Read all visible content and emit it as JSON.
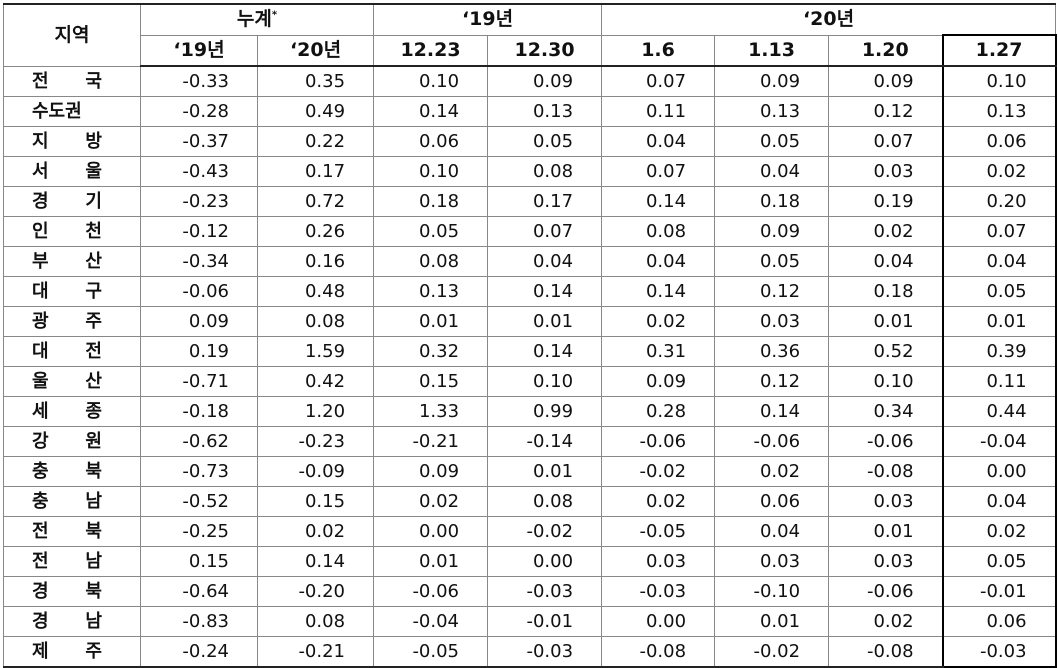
{
  "header": {
    "region": "지역",
    "cumulative": "누계",
    "cumulative_note": "*",
    "year19": "‘19년",
    "year20": "‘20년",
    "columns": [
      "‘19년",
      "‘20년",
      "12.23",
      "12.30",
      "1.6",
      "1.13",
      "1.20",
      "1.27"
    ]
  },
  "table": {
    "rows": [
      [
        "전 국",
        "-0.33",
        "0.35",
        "0.10",
        "0.09",
        "0.07",
        "0.09",
        "0.09",
        "0.10"
      ],
      [
        "수도권",
        "-0.28",
        "0.49",
        "0.14",
        "0.13",
        "0.11",
        "0.13",
        "0.12",
        "0.13"
      ],
      [
        "지 방",
        "-0.37",
        "0.22",
        "0.06",
        "0.05",
        "0.04",
        "0.05",
        "0.07",
        "0.06"
      ],
      [
        "서 울",
        "-0.43",
        "0.17",
        "0.10",
        "0.08",
        "0.07",
        "0.04",
        "0.03",
        "0.02"
      ],
      [
        "경 기",
        "-0.23",
        "0.72",
        "0.18",
        "0.17",
        "0.14",
        "0.18",
        "0.19",
        "0.20"
      ],
      [
        "인 천",
        "-0.12",
        "0.26",
        "0.05",
        "0.07",
        "0.08",
        "0.09",
        "0.02",
        "0.07"
      ],
      [
        "부 산",
        "-0.34",
        "0.16",
        "0.08",
        "0.04",
        "0.04",
        "0.05",
        "0.04",
        "0.04"
      ],
      [
        "대 구",
        "-0.06",
        "0.48",
        "0.13",
        "0.14",
        "0.14",
        "0.12",
        "0.18",
        "0.05"
      ],
      [
        "광 주",
        "0.09",
        "0.08",
        "0.01",
        "0.01",
        "0.02",
        "0.03",
        "0.01",
        "0.01"
      ],
      [
        "대 전",
        "0.19",
        "1.59",
        "0.32",
        "0.14",
        "0.31",
        "0.36",
        "0.52",
        "0.39"
      ],
      [
        "울 산",
        "-0.71",
        "0.42",
        "0.15",
        "0.10",
        "0.09",
        "0.12",
        "0.10",
        "0.11"
      ],
      [
        "세 종",
        "-0.18",
        "1.20",
        "1.33",
        "0.99",
        "0.28",
        "0.14",
        "0.34",
        "0.44"
      ],
      [
        "강 원",
        "-0.62",
        "-0.23",
        "-0.21",
        "-0.14",
        "-0.06",
        "-0.06",
        "-0.06",
        "-0.04"
      ],
      [
        "충 북",
        "-0.73",
        "-0.09",
        "0.09",
        "0.01",
        "-0.02",
        "0.02",
        "-0.08",
        "0.00"
      ],
      [
        "충 남",
        "-0.52",
        "0.15",
        "0.02",
        "0.08",
        "0.02",
        "0.06",
        "0.03",
        "0.04"
      ],
      [
        "전 북",
        "-0.25",
        "0.02",
        "0.00",
        "-0.02",
        "-0.05",
        "0.04",
        "0.01",
        "0.02"
      ],
      [
        "전 남",
        "0.15",
        "0.14",
        "0.01",
        "0.00",
        "0.03",
        "0.03",
        "0.03",
        "0.05"
      ],
      [
        "경 북",
        "-0.64",
        "-0.20",
        "-0.06",
        "-0.03",
        "-0.03",
        "-0.10",
        "-0.06",
        "-0.01"
      ],
      [
        "경 남",
        "-0.83",
        "0.08",
        "-0.04",
        "-0.01",
        "0.00",
        "0.01",
        "0.02",
        "0.06"
      ],
      [
        "제 주",
        "-0.24",
        "-0.21",
        "-0.05",
        "-0.03",
        "-0.08",
        "-0.02",
        "-0.08",
        "-0.03"
      ]
    ]
  }
}
